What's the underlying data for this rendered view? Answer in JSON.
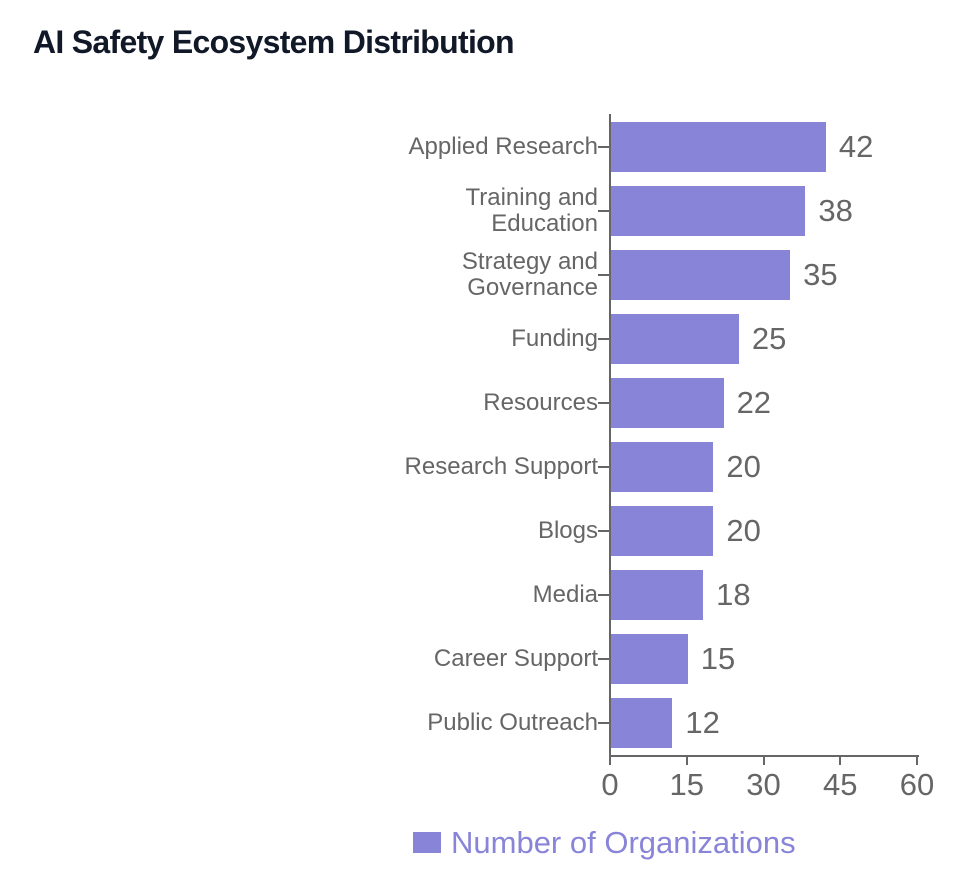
{
  "title": "AI Safety Ecosystem Distribution",
  "colors": {
    "accent": "#8884d8",
    "label_gray": "#666666",
    "title_color": "#111827",
    "background": "#ffffff"
  },
  "legend": {
    "label": "Number of Organizations",
    "icon": "square-swatch",
    "swatch_color": "#8884d8"
  },
  "chart_data": {
    "type": "bar",
    "orientation": "horizontal",
    "title": "AI Safety Ecosystem Distribution",
    "categories": [
      "Applied Research",
      "Training and Education",
      "Strategy and Governance",
      "Funding",
      "Resources",
      "Research Support",
      "Blogs",
      "Media",
      "Career Support",
      "Public Outreach"
    ],
    "series": [
      {
        "name": "Number of Organizations",
        "values": [
          42,
          38,
          35,
          25,
          22,
          20,
          20,
          18,
          15,
          12
        ]
      }
    ],
    "value_labels": [
      42,
      38,
      35,
      25,
      22,
      20,
      20,
      18,
      15,
      12
    ],
    "xlabel": "",
    "ylabel": "",
    "xlim": [
      0,
      60
    ],
    "xticks": [
      0,
      15,
      30,
      45,
      60
    ],
    "grid": false,
    "legend_position": "bottom",
    "bar_color": "#8884d8",
    "label_color": "#666666"
  }
}
